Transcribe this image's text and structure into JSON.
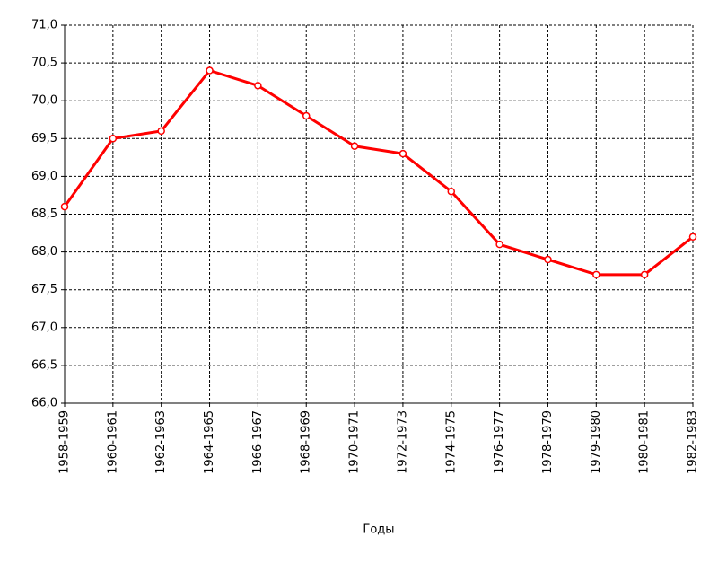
{
  "chart_data": {
    "type": "line",
    "x_label": "Годы",
    "categories": [
      "1958-1959",
      "1960-1961",
      "1962-1963",
      "1964-1965",
      "1966-1967",
      "1968-1969",
      "1970-1971",
      "1972-1973",
      "1974-1975",
      "1976-1977",
      "1978-1979",
      "1979-1980",
      "1980-1981",
      "1982-1983"
    ],
    "values": [
      68.6,
      69.5,
      69.6,
      70.4,
      70.2,
      69.8,
      69.4,
      69.3,
      68.8,
      68.1,
      67.9,
      67.7,
      67.7,
      68.2
    ],
    "color": "#ff0000",
    "ylim": [
      66,
      71
    ],
    "yticks": [
      {
        "value": 66,
        "label": "66,0"
      },
      {
        "value": 66.5,
        "label": "66,5"
      },
      {
        "value": 67,
        "label": "67,0"
      },
      {
        "value": 67.5,
        "label": "67,5"
      },
      {
        "value": 68,
        "label": "68,0"
      },
      {
        "value": 68.5,
        "label": "68,5"
      },
      {
        "value": 69,
        "label": "69,0"
      },
      {
        "value": 69.5,
        "label": "69,5"
      },
      {
        "value": 70,
        "label": "70,0"
      },
      {
        "value": 70.5,
        "label": "70,5"
      },
      {
        "value": 71,
        "label": "71,0"
      }
    ],
    "grid": true
  }
}
